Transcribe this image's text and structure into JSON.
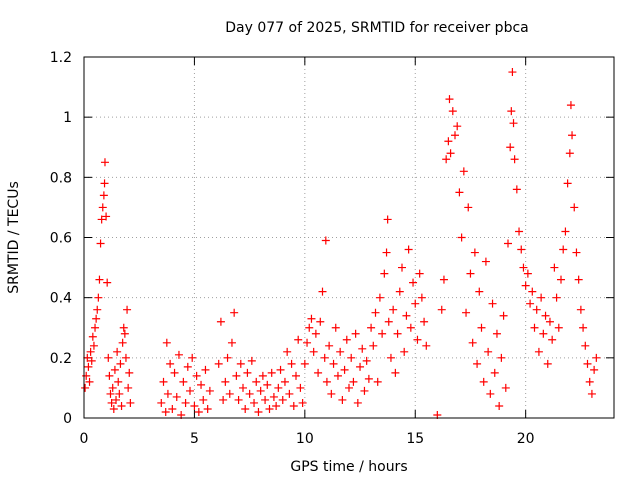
{
  "chart_data": {
    "type": "scatter",
    "title": "Day 077 of 2025, SRMTID for receiver pbca",
    "xlabel": "GPS time / hours",
    "ylabel": "SRMTID / TECUs",
    "xlim": [
      0,
      24
    ],
    "ylim": [
      0,
      1.2
    ],
    "xticks": [
      0,
      5,
      10,
      15,
      20
    ],
    "xtick_labels": [
      "0",
      "5",
      "10",
      "15",
      "20"
    ],
    "yticks": [
      0,
      0.2,
      0.4,
      0.6,
      0.8,
      1.0,
      1.2
    ],
    "ytick_labels": [
      "0",
      "0.2",
      "0.4",
      "0.6",
      "0.8",
      "1",
      "1.2"
    ],
    "grid": true,
    "marker": "+",
    "series": [
      {
        "name": "pbca",
        "color": "#ff0000",
        "points": [
          [
            0.05,
            0.1
          ],
          [
            0.1,
            0.14
          ],
          [
            0.15,
            0.2
          ],
          [
            0.2,
            0.17
          ],
          [
            0.25,
            0.12
          ],
          [
            0.3,
            0.22
          ],
          [
            0.35,
            0.19
          ],
          [
            0.4,
            0.27
          ],
          [
            0.45,
            0.24
          ],
          [
            0.5,
            0.3
          ],
          [
            0.55,
            0.33
          ],
          [
            0.6,
            0.36
          ],
          [
            0.65,
            0.4
          ],
          [
            0.7,
            0.46
          ],
          [
            0.75,
            0.58
          ],
          [
            0.8,
            0.66
          ],
          [
            0.85,
            0.7
          ],
          [
            0.9,
            0.74
          ],
          [
            0.93,
            0.78
          ],
          [
            0.95,
            0.85
          ],
          [
            1.0,
            0.67
          ],
          [
            1.05,
            0.45
          ],
          [
            1.1,
            0.2
          ],
          [
            1.15,
            0.14
          ],
          [
            1.2,
            0.08
          ],
          [
            1.25,
            0.05
          ],
          [
            1.3,
            0.1
          ],
          [
            1.35,
            0.03
          ],
          [
            1.4,
            0.16
          ],
          [
            1.45,
            0.06
          ],
          [
            1.5,
            0.22
          ],
          [
            1.55,
            0.12
          ],
          [
            1.6,
            0.08
          ],
          [
            1.65,
            0.18
          ],
          [
            1.7,
            0.04
          ],
          [
            1.75,
            0.25
          ],
          [
            1.8,
            0.3
          ],
          [
            1.85,
            0.28
          ],
          [
            1.9,
            0.2
          ],
          [
            1.95,
            0.36
          ],
          [
            2.0,
            0.1
          ],
          [
            2.05,
            0.15
          ],
          [
            2.1,
            0.05
          ],
          [
            3.5,
            0.05
          ],
          [
            3.6,
            0.12
          ],
          [
            3.7,
            0.02
          ],
          [
            3.75,
            0.25
          ],
          [
            3.8,
            0.08
          ],
          [
            3.9,
            0.18
          ],
          [
            4.0,
            0.03
          ],
          [
            4.1,
            0.15
          ],
          [
            4.2,
            0.07
          ],
          [
            4.3,
            0.21
          ],
          [
            4.4,
            0.01
          ],
          [
            4.5,
            0.12
          ],
          [
            4.6,
            0.05
          ],
          [
            4.7,
            0.17
          ],
          [
            4.8,
            0.09
          ],
          [
            4.9,
            0.2
          ],
          [
            5.0,
            0.04
          ],
          [
            5.1,
            0.14
          ],
          [
            5.2,
            0.02
          ],
          [
            5.3,
            0.11
          ],
          [
            5.4,
            0.06
          ],
          [
            5.5,
            0.16
          ],
          [
            5.6,
            0.03
          ],
          [
            5.7,
            0.09
          ],
          [
            6.1,
            0.18
          ],
          [
            6.2,
            0.32
          ],
          [
            6.3,
            0.06
          ],
          [
            6.4,
            0.12
          ],
          [
            6.5,
            0.2
          ],
          [
            6.6,
            0.08
          ],
          [
            6.7,
            0.25
          ],
          [
            6.8,
            0.35
          ],
          [
            6.9,
            0.14
          ],
          [
            7.0,
            0.06
          ],
          [
            7.1,
            0.18
          ],
          [
            7.2,
            0.1
          ],
          [
            7.3,
            0.03
          ],
          [
            7.4,
            0.15
          ],
          [
            7.5,
            0.08
          ],
          [
            7.6,
            0.19
          ],
          [
            7.7,
            0.05
          ],
          [
            7.8,
            0.12
          ],
          [
            7.9,
            0.02
          ],
          [
            8.0,
            0.09
          ],
          [
            8.1,
            0.14
          ],
          [
            8.2,
            0.06
          ],
          [
            8.3,
            0.11
          ],
          [
            8.4,
            0.03
          ],
          [
            8.5,
            0.15
          ],
          [
            8.6,
            0.07
          ],
          [
            8.7,
            0.04
          ],
          [
            8.8,
            0.1
          ],
          [
            8.9,
            0.16
          ],
          [
            9.0,
            0.06
          ],
          [
            9.1,
            0.12
          ],
          [
            9.2,
            0.22
          ],
          [
            9.3,
            0.08
          ],
          [
            9.4,
            0.18
          ],
          [
            9.5,
            0.04
          ],
          [
            9.6,
            0.14
          ],
          [
            9.7,
            0.26
          ],
          [
            9.8,
            0.1
          ],
          [
            9.9,
            0.05
          ],
          [
            10.0,
            0.18
          ],
          [
            10.1,
            0.25
          ],
          [
            10.2,
            0.3
          ],
          [
            10.3,
            0.33
          ],
          [
            10.4,
            0.22
          ],
          [
            10.5,
            0.28
          ],
          [
            10.6,
            0.15
          ],
          [
            10.7,
            0.32
          ],
          [
            10.8,
            0.42
          ],
          [
            10.9,
            0.2
          ],
          [
            10.95,
            0.59
          ],
          [
            11.0,
            0.12
          ],
          [
            11.1,
            0.24
          ],
          [
            11.2,
            0.08
          ],
          [
            11.3,
            0.18
          ],
          [
            11.4,
            0.3
          ],
          [
            11.5,
            0.14
          ],
          [
            11.6,
            0.22
          ],
          [
            11.7,
            0.06
          ],
          [
            11.8,
            0.16
          ],
          [
            11.9,
            0.26
          ],
          [
            12.0,
            0.1
          ],
          [
            12.1,
            0.2
          ],
          [
            12.2,
            0.12
          ],
          [
            12.3,
            0.28
          ],
          [
            12.4,
            0.05
          ],
          [
            12.5,
            0.17
          ],
          [
            12.6,
            0.23
          ],
          [
            12.7,
            0.09
          ],
          [
            12.8,
            0.19
          ],
          [
            12.9,
            0.13
          ],
          [
            13.0,
            0.3
          ],
          [
            13.1,
            0.24
          ],
          [
            13.2,
            0.35
          ],
          [
            13.3,
            0.12
          ],
          [
            13.4,
            0.4
          ],
          [
            13.5,
            0.28
          ],
          [
            13.6,
            0.48
          ],
          [
            13.7,
            0.55
          ],
          [
            13.75,
            0.66
          ],
          [
            13.8,
            0.32
          ],
          [
            13.9,
            0.2
          ],
          [
            14.0,
            0.36
          ],
          [
            14.1,
            0.15
          ],
          [
            14.2,
            0.28
          ],
          [
            14.3,
            0.42
          ],
          [
            14.4,
            0.5
          ],
          [
            14.5,
            0.22
          ],
          [
            14.6,
            0.34
          ],
          [
            14.7,
            0.56
          ],
          [
            14.8,
            0.3
          ],
          [
            14.9,
            0.45
          ],
          [
            15.0,
            0.38
          ],
          [
            15.1,
            0.26
          ],
          [
            15.2,
            0.48
          ],
          [
            15.3,
            0.4
          ],
          [
            15.4,
            0.32
          ],
          [
            15.5,
            0.24
          ],
          [
            16.0,
            0.01
          ],
          [
            16.2,
            0.36
          ],
          [
            16.3,
            0.46
          ],
          [
            16.4,
            0.86
          ],
          [
            16.5,
            0.92
          ],
          [
            16.55,
            1.06
          ],
          [
            16.6,
            0.88
          ],
          [
            16.7,
            1.02
          ],
          [
            16.8,
            0.94
          ],
          [
            16.9,
            0.97
          ],
          [
            17.0,
            0.75
          ],
          [
            17.1,
            0.6
          ],
          [
            17.2,
            0.82
          ],
          [
            17.3,
            0.35
          ],
          [
            17.4,
            0.7
          ],
          [
            17.5,
            0.48
          ],
          [
            17.6,
            0.25
          ],
          [
            17.7,
            0.55
          ],
          [
            17.8,
            0.18
          ],
          [
            17.9,
            0.42
          ],
          [
            18.0,
            0.3
          ],
          [
            18.1,
            0.12
          ],
          [
            18.2,
            0.52
          ],
          [
            18.3,
            0.22
          ],
          [
            18.4,
            0.08
          ],
          [
            18.5,
            0.38
          ],
          [
            18.6,
            0.15
          ],
          [
            18.7,
            0.28
          ],
          [
            18.8,
            0.04
          ],
          [
            18.9,
            0.2
          ],
          [
            19.0,
            0.34
          ],
          [
            19.1,
            0.1
          ],
          [
            19.2,
            0.58
          ],
          [
            19.3,
            0.9
          ],
          [
            19.35,
            1.02
          ],
          [
            19.4,
            1.15
          ],
          [
            19.45,
            0.98
          ],
          [
            19.5,
            0.86
          ],
          [
            19.6,
            0.76
          ],
          [
            19.7,
            0.62
          ],
          [
            19.8,
            0.56
          ],
          [
            19.9,
            0.5
          ],
          [
            20.0,
            0.44
          ],
          [
            20.1,
            0.48
          ],
          [
            20.2,
            0.38
          ],
          [
            20.3,
            0.42
          ],
          [
            20.4,
            0.3
          ],
          [
            20.5,
            0.36
          ],
          [
            20.6,
            0.22
          ],
          [
            20.7,
            0.4
          ],
          [
            20.8,
            0.28
          ],
          [
            20.9,
            0.34
          ],
          [
            21.0,
            0.18
          ],
          [
            21.1,
            0.32
          ],
          [
            21.2,
            0.26
          ],
          [
            21.3,
            0.5
          ],
          [
            21.4,
            0.4
          ],
          [
            21.5,
            0.3
          ],
          [
            21.6,
            0.46
          ],
          [
            21.7,
            0.56
          ],
          [
            21.8,
            0.62
          ],
          [
            21.9,
            0.78
          ],
          [
            22.0,
            0.88
          ],
          [
            22.05,
            1.04
          ],
          [
            22.1,
            0.94
          ],
          [
            22.2,
            0.7
          ],
          [
            22.3,
            0.55
          ],
          [
            22.4,
            0.46
          ],
          [
            22.5,
            0.36
          ],
          [
            22.6,
            0.3
          ],
          [
            22.7,
            0.24
          ],
          [
            22.8,
            0.18
          ],
          [
            22.9,
            0.12
          ],
          [
            23.0,
            0.08
          ],
          [
            23.1,
            0.16
          ],
          [
            23.2,
            0.2
          ]
        ]
      }
    ]
  }
}
